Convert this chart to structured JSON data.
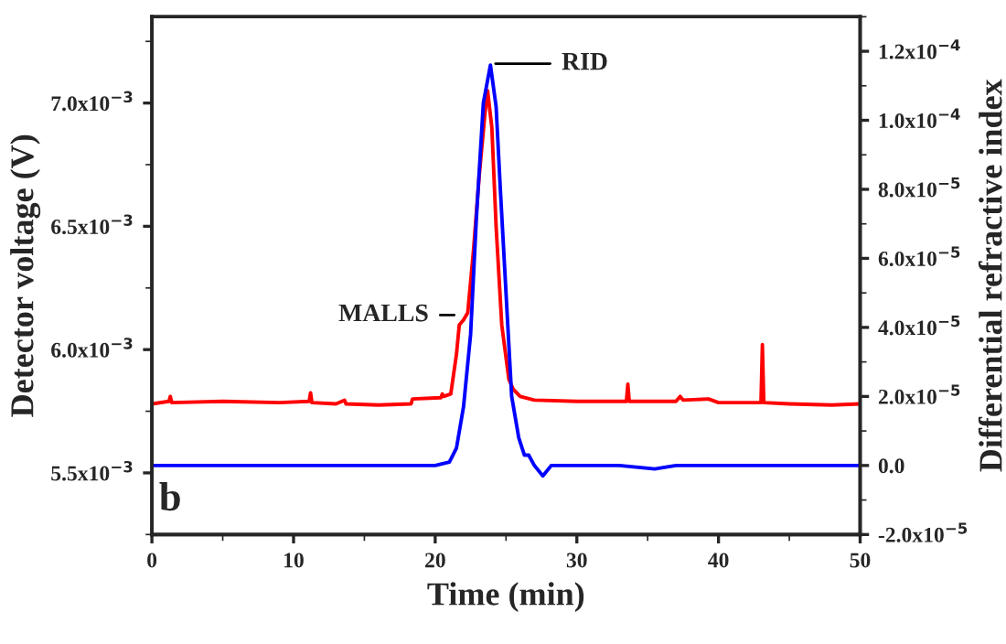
{
  "chart_data": {
    "type": "line",
    "xlabel": "Time (min)",
    "ylabel": "Detector voltage (V)",
    "y2label": "Differential refractive index",
    "xlim": [
      0,
      50
    ],
    "xticks": [
      0,
      10,
      20,
      30,
      40,
      50
    ],
    "ylim": [
      0.00525,
      0.00735
    ],
    "yticks": [
      {
        "value": 0.0055,
        "label": "5.5x10$^{−3}$"
      },
      {
        "value": 0.006,
        "label": "6.0x10$^{−3}$"
      },
      {
        "value": 0.0065,
        "label": "6.5x10$^{−3}$"
      },
      {
        "value": 0.007,
        "label": "7.0x10$^{−3}$"
      }
    ],
    "y2lim": [
      -2e-05,
      0.00013
    ],
    "y2ticks": [
      {
        "value": -2e-05,
        "label": "-2.0x10$^{−5}$"
      },
      {
        "value": 0,
        "label": "0.0"
      },
      {
        "value": 2e-05,
        "label": "2.0x10$^{−5}$"
      },
      {
        "value": 4e-05,
        "label": "4.0x10$^{−5}$"
      },
      {
        "value": 6e-05,
        "label": "6.0x10$^{−5}$"
      },
      {
        "value": 8e-05,
        "label": "8.0x10$^{−5}$"
      },
      {
        "value": 0.0001,
        "label": "1.0x10$^{−4}$"
      },
      {
        "value": 0.00012,
        "label": "1.2x10$^{−4}$"
      }
    ],
    "grid": false,
    "marker": "none",
    "line_style": "solid",
    "series": [
      {
        "color": "#ff0000",
        "x": [
          0,
          1.2,
          1.3,
          1.4,
          5,
          9,
          11.1,
          11.2,
          11.3,
          13,
          13.6,
          13.7,
          16,
          18.3,
          18.4,
          20.4,
          20.5,
          20.6,
          21.1,
          21.5,
          21.7,
          22.0,
          22.3,
          22.7,
          23.1,
          23.5,
          23.7,
          24.0,
          24.3,
          24.7,
          25.2,
          25.5,
          26,
          27,
          30,
          33.5,
          33.6,
          33.7,
          37,
          37.3,
          37.5,
          39.3,
          40,
          43,
          43.1,
          43.2,
          45,
          48,
          50
        ],
        "values": [
          0.00578,
          0.00579,
          0.00581,
          0.005785,
          0.00579,
          0.005785,
          0.00579,
          0.005825,
          0.005785,
          0.00578,
          0.005795,
          0.00578,
          0.005775,
          0.00578,
          0.0058,
          0.005805,
          0.00582,
          0.00581,
          0.00582,
          0.00598,
          0.0061,
          0.00612,
          0.00615,
          0.0064,
          0.0067,
          0.00695,
          0.00705,
          0.0069,
          0.0065,
          0.0061,
          0.00588,
          0.00584,
          0.00581,
          0.005795,
          0.00579,
          0.00579,
          0.00586,
          0.00579,
          0.00579,
          0.00581,
          0.005795,
          0.0058,
          0.005785,
          0.005785,
          0.00602,
          0.005785,
          0.00578,
          0.005775,
          0.00578
        ]
      },
      {
        "color": "#0000ff",
        "axis": "y2",
        "x": [
          0,
          10,
          20,
          21,
          21.5,
          22,
          22.5,
          22.9,
          23.4,
          23.9,
          24.3,
          24.6,
          25.0,
          25.4,
          25.9,
          26.3,
          26.6,
          27.0,
          27.6,
          28.2,
          29,
          33,
          35.5,
          37,
          50
        ],
        "values": [
          0.0,
          0.0,
          0.0,
          1e-06,
          5e-06,
          1.7e-05,
          3.8e-05,
          7.1e-05,
          0.000105,
          0.000116,
          0.000104,
          8e-05,
          5e-05,
          2e-05,
          8e-06,
          3e-06,
          3e-06,
          0.0,
          -3e-06,
          0.0,
          0.0,
          0.0,
          -1e-06,
          0.0,
          0.0
        ]
      }
    ],
    "annotations": [
      {
        "text": "MALLS",
        "x": 21.7,
        "y": 0.00614
      },
      {
        "text": "RID",
        "x": 23.9,
        "y": 0.00716
      },
      "b"
    ]
  }
}
